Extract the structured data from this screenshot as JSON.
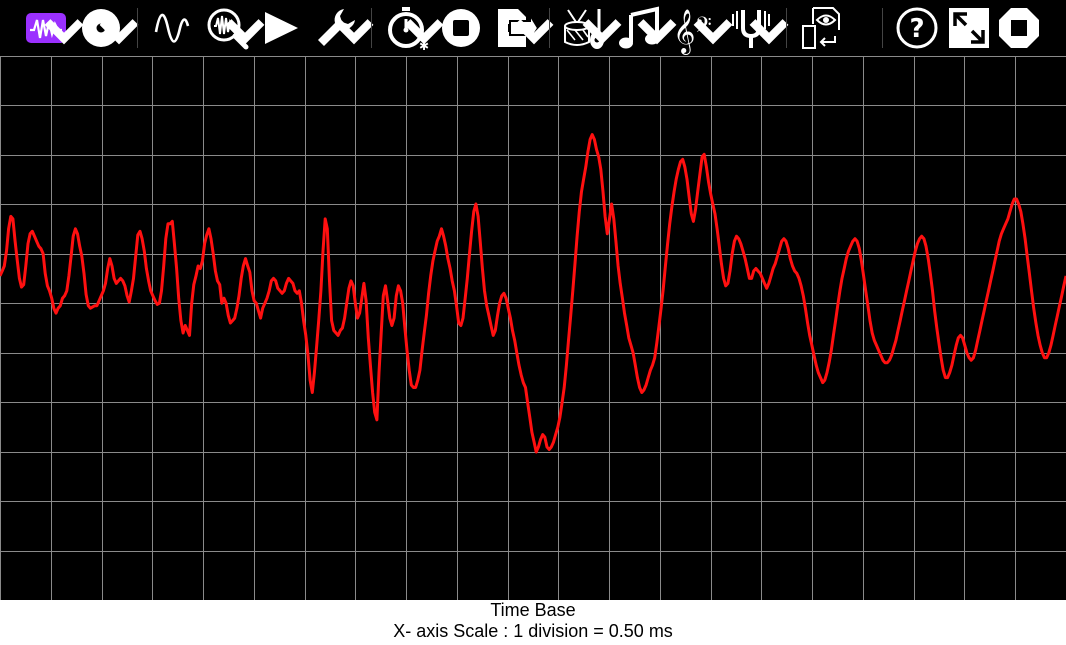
{
  "toolbar": {
    "items": [
      {
        "name": "oscilloscope-mode-button",
        "icon": "oscilloscope-icon",
        "active": true,
        "menu": true
      },
      {
        "name": "record-disc-button",
        "icon": "disc-icon",
        "menu": true
      },
      {
        "name": "sine-wave-button",
        "icon": "sine-wave-icon",
        "menu": false
      },
      {
        "name": "zoom-wave-button",
        "icon": "magnifier-wave-icon",
        "menu": true
      },
      {
        "name": "play-button",
        "icon": "play-icon",
        "menu": false
      },
      {
        "name": "settings-button",
        "icon": "wrench-icon",
        "menu": true
      },
      {
        "name": "timer-button",
        "icon": "stopwatch-icon",
        "menu": true
      },
      {
        "name": "stop-button",
        "icon": "stop-icon",
        "menu": false
      },
      {
        "name": "export-button",
        "icon": "export-document-icon",
        "menu": true
      },
      {
        "name": "instruments-button",
        "icon": "drum-guitar-icon",
        "menu": true
      },
      {
        "name": "music-note-button",
        "icon": "music-note-icon",
        "menu": true
      },
      {
        "name": "clef-button",
        "icon": "treble-bass-clef-icon",
        "menu": true
      },
      {
        "name": "tuning-fork-button",
        "icon": "tuning-fork-icon",
        "menu": true
      },
      {
        "name": "view-file-button",
        "icon": "document-eye-icon",
        "menu": false
      },
      {
        "name": "help-button",
        "icon": "help-icon",
        "menu": false
      },
      {
        "name": "fullscreen-button",
        "icon": "fullscreen-icon",
        "menu": false
      },
      {
        "name": "quit-button",
        "icon": "octagon-stop-icon",
        "menu": false
      }
    ],
    "active_color": "#9b30ff"
  },
  "scope": {
    "background": "#000000",
    "grid_color": "#8a8a8a",
    "trace_color": "#ff1010",
    "divisions_x": 21,
    "divisions_y": 11,
    "samples": [
      0.42,
      0.46,
      0.5,
      0.62,
      0.8,
      0.9,
      0.88,
      0.7,
      0.55,
      0.4,
      0.33,
      0.35,
      0.5,
      0.68,
      0.76,
      0.78,
      0.74,
      0.7,
      0.66,
      0.64,
      0.6,
      0.44,
      0.34,
      0.3,
      0.24,
      0.16,
      0.12,
      0.16,
      0.18,
      0.24,
      0.26,
      0.3,
      0.42,
      0.58,
      0.74,
      0.8,
      0.76,
      0.66,
      0.58,
      0.44,
      0.27,
      0.18,
      0.16,
      0.17,
      0.18,
      0.18,
      0.22,
      0.26,
      0.3,
      0.36,
      0.48,
      0.56,
      0.5,
      0.4,
      0.36,
      0.38,
      0.4,
      0.38,
      0.34,
      0.26,
      0.21,
      0.3,
      0.4,
      0.58,
      0.75,
      0.78,
      0.72,
      0.62,
      0.48,
      0.38,
      0.3,
      0.26,
      0.22,
      0.19,
      0.2,
      0.3,
      0.5,
      0.72,
      0.84,
      0.84,
      0.86,
      0.68,
      0.48,
      0.24,
      0.06,
      -0.04,
      0.02,
      -0.02,
      -0.06,
      0.2,
      0.35,
      0.42,
      0.5,
      0.48,
      0.54,
      0.68,
      0.75,
      0.8,
      0.72,
      0.6,
      0.46,
      0.38,
      0.35,
      0.2,
      0.24,
      0.2,
      0.1,
      0.04,
      0.06,
      0.08,
      0.16,
      0.26,
      0.4,
      0.5,
      0.56,
      0.5,
      0.45,
      0.3,
      0.22,
      0.2,
      0.14,
      0.08,
      0.16,
      0.2,
      0.24,
      0.3,
      0.38,
      0.4,
      0.38,
      0.32,
      0.3,
      0.28,
      0.3,
      0.36,
      0.4,
      0.38,
      0.36,
      0.3,
      0.28,
      0.3,
      0.2,
      0.06,
      -0.06,
      -0.22,
      -0.42,
      -0.52,
      -0.36,
      -0.15,
      0.06,
      0.3,
      0.62,
      0.88,
      0.8,
      0.38,
      0.06,
      -0.02,
      -0.04,
      -0.06,
      -0.02,
      0.0,
      0.08,
      0.2,
      0.32,
      0.38,
      0.34,
      0.2,
      0.08,
      0.12,
      0.24,
      0.36,
      0.22,
      -0.08,
      -0.3,
      -0.52,
      -0.68,
      -0.74,
      -0.36,
      -0.04,
      0.26,
      0.34,
      0.22,
      0.08,
      0.02,
      0.08,
      0.26,
      0.34,
      0.3,
      0.2,
      0.0,
      -0.18,
      -0.34,
      -0.46,
      -0.48,
      -0.48,
      -0.42,
      -0.34,
      -0.18,
      -0.04,
      0.1,
      0.28,
      0.42,
      0.54,
      0.62,
      0.7,
      0.74,
      0.8,
      0.74,
      0.66,
      0.56,
      0.48,
      0.38,
      0.3,
      0.18,
      0.04,
      0.02,
      0.08,
      0.24,
      0.4,
      0.6,
      0.78,
      0.94,
      1.0,
      0.9,
      0.7,
      0.48,
      0.3,
      0.18,
      0.1,
      0.02,
      -0.06,
      -0.02,
      0.1,
      0.2,
      0.26,
      0.28,
      0.24,
      0.16,
      0.08,
      -0.02,
      -0.1,
      -0.2,
      -0.3,
      -0.38,
      -0.44,
      -0.48,
      -0.6,
      -0.72,
      -0.84,
      -0.92,
      -1.0,
      -0.96,
      -0.9,
      -0.86,
      -0.88,
      -0.96,
      -0.98,
      -0.96,
      -0.92,
      -0.86,
      -0.8,
      -0.72,
      -0.6,
      -0.48,
      -0.3,
      -0.1,
      0.1,
      0.3,
      0.52,
      0.74,
      0.94,
      1.1,
      1.2,
      1.3,
      1.42,
      1.52,
      1.56,
      1.52,
      1.44,
      1.38,
      1.28,
      1.1,
      0.9,
      0.76,
      0.88,
      1.0,
      0.88,
      0.7,
      0.5,
      0.36,
      0.24,
      0.12,
      0.02,
      -0.08,
      -0.14,
      -0.2,
      -0.3,
      -0.4,
      -0.48,
      -0.52,
      -0.5,
      -0.46,
      -0.4,
      -0.34,
      -0.3,
      -0.24,
      -0.12,
      0.02,
      0.16,
      0.32,
      0.5,
      0.68,
      0.84,
      0.98,
      1.1,
      1.2,
      1.28,
      1.34,
      1.36,
      1.3,
      1.2,
      1.06,
      0.92,
      0.86,
      0.96,
      1.1,
      1.24,
      1.38,
      1.4,
      1.3,
      1.18,
      1.08,
      1.0,
      0.92,
      0.8,
      0.66,
      0.52,
      0.4,
      0.34,
      0.36,
      0.46,
      0.6,
      0.7,
      0.74,
      0.72,
      0.68,
      0.62,
      0.56,
      0.48,
      0.4,
      0.4,
      0.46,
      0.48,
      0.46,
      0.44,
      0.4,
      0.36,
      0.32,
      0.36,
      0.42,
      0.48,
      0.52,
      0.58,
      0.64,
      0.7,
      0.72,
      0.7,
      0.64,
      0.56,
      0.5,
      0.46,
      0.44,
      0.4,
      0.34,
      0.26,
      0.16,
      0.04,
      -0.06,
      -0.14,
      -0.22,
      -0.3,
      -0.36,
      -0.4,
      -0.44,
      -0.42,
      -0.36,
      -0.28,
      -0.18,
      -0.06,
      0.06,
      0.18,
      0.3,
      0.4,
      0.48,
      0.56,
      0.62,
      0.66,
      0.7,
      0.72,
      0.7,
      0.64,
      0.54,
      0.42,
      0.3,
      0.18,
      0.06,
      -0.04,
      -0.1,
      -0.14,
      -0.18,
      -0.22,
      -0.26,
      -0.28,
      -0.28,
      -0.26,
      -0.22,
      -0.16,
      -0.1,
      -0.02,
      0.06,
      0.14,
      0.22,
      0.3,
      0.38,
      0.46,
      0.54,
      0.62,
      0.68,
      0.72,
      0.74,
      0.72,
      0.66,
      0.56,
      0.44,
      0.3,
      0.14,
      0.0,
      -0.12,
      -0.24,
      -0.34,
      -0.4,
      -0.4,
      -0.36,
      -0.3,
      -0.22,
      -0.14,
      -0.08,
      -0.06,
      -0.08,
      -0.14,
      -0.2,
      -0.24,
      -0.26,
      -0.24,
      -0.18,
      -0.1,
      -0.02,
      0.06,
      0.14,
      0.22,
      0.3,
      0.38,
      0.46,
      0.54,
      0.62,
      0.7,
      0.76,
      0.8,
      0.84,
      0.88,
      0.94,
      1.0,
      1.04,
      1.04,
      1.0,
      0.94,
      0.84,
      0.72,
      0.58,
      0.44,
      0.3,
      0.16,
      0.04,
      -0.06,
      -0.14,
      -0.2,
      -0.24,
      -0.24,
      -0.2,
      -0.14,
      -0.06,
      0.02,
      0.1,
      0.18,
      0.26,
      0.34,
      0.42
    ]
  },
  "footer": {
    "title": "Time Base",
    "scale": "X- axis Scale : 1 division = 0.50 ms"
  }
}
